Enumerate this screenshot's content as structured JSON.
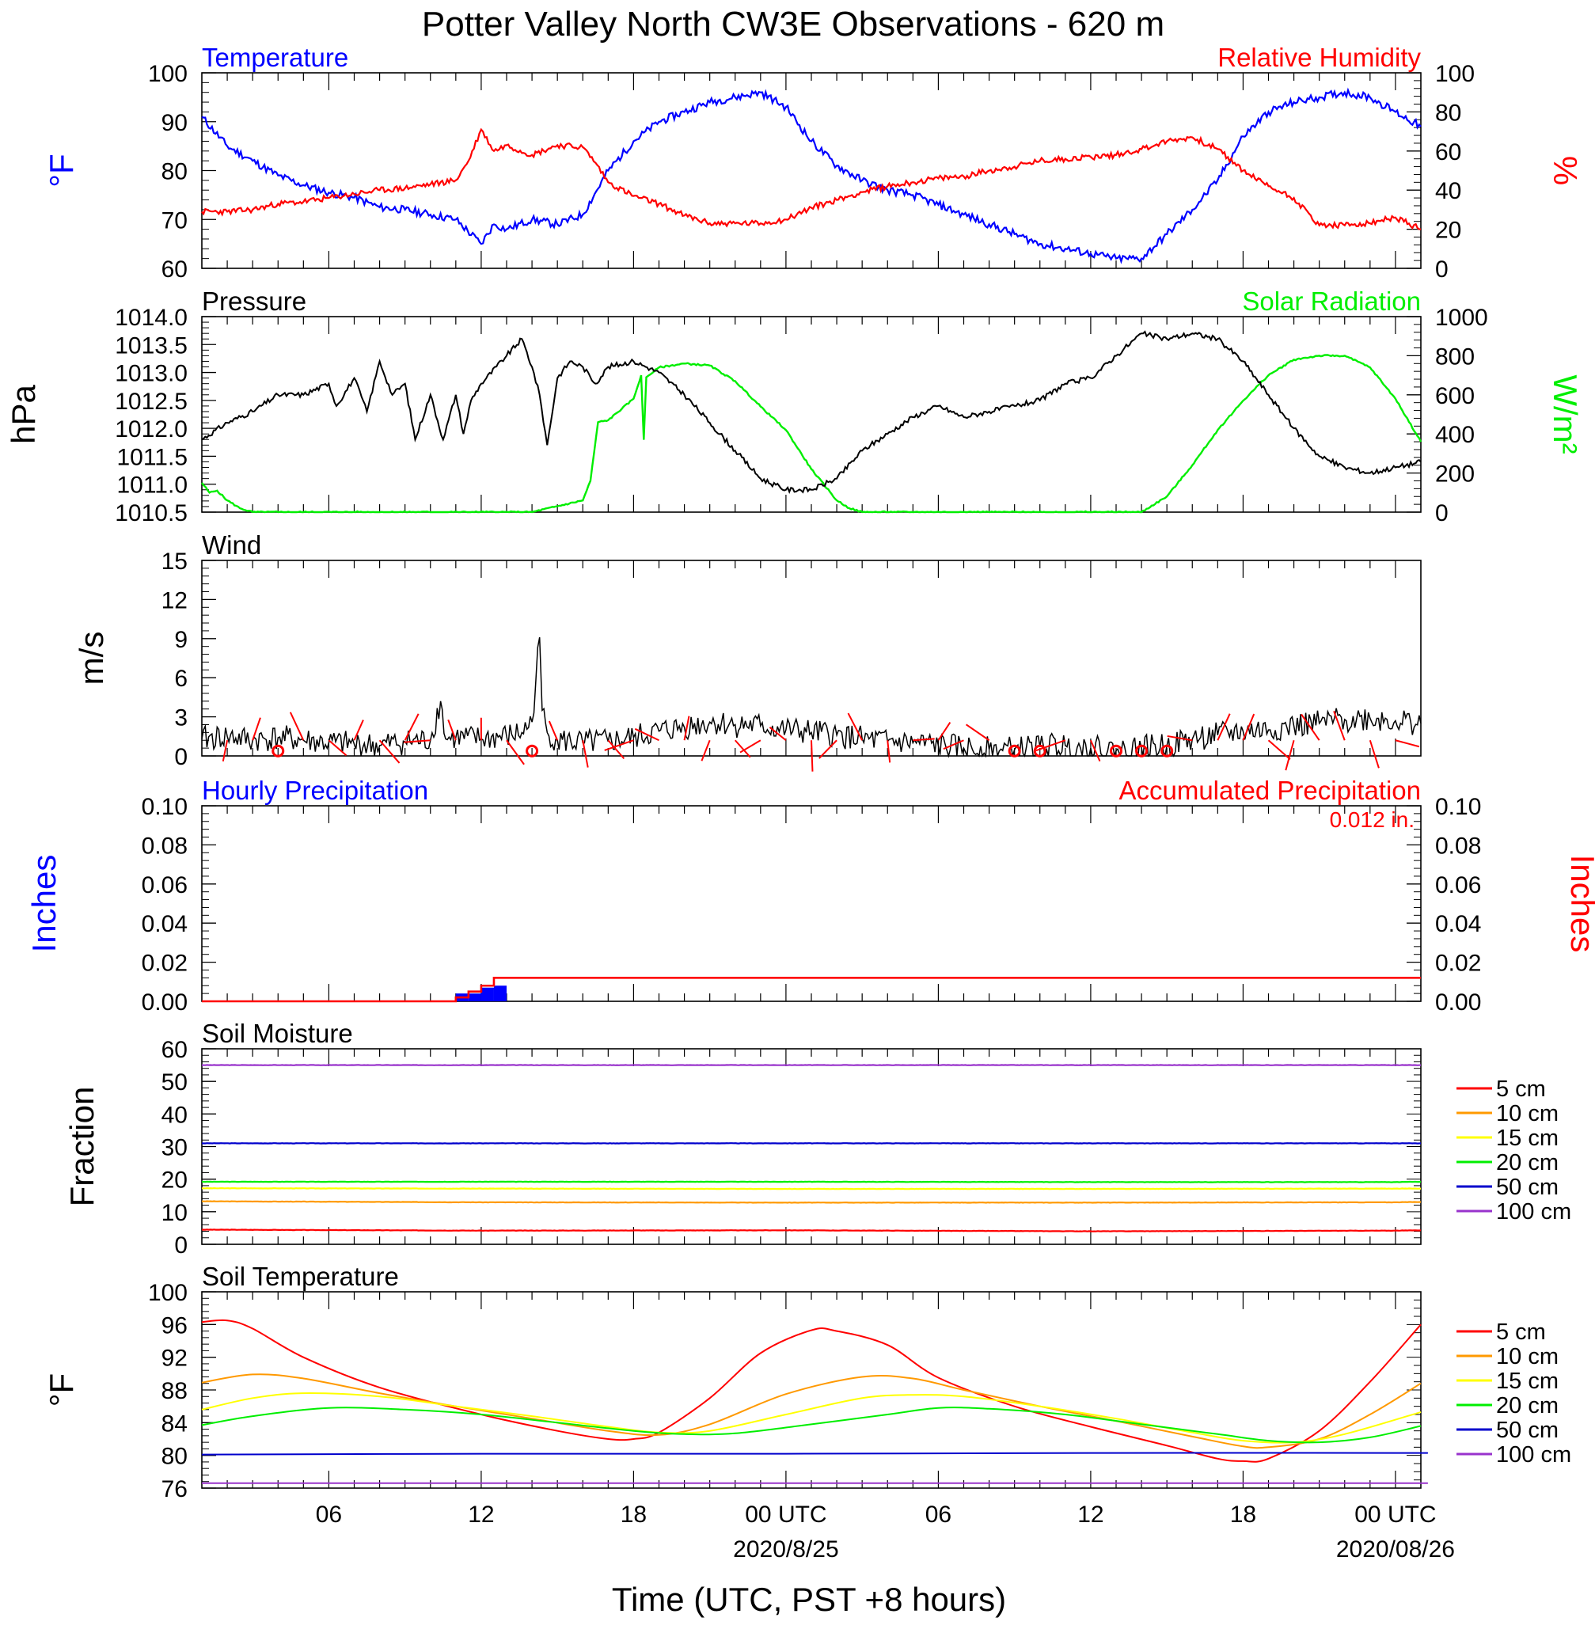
{
  "title": "Potter Valley North CW3E Observations - 620 m",
  "colors": {
    "temperature": "#0000ff",
    "humidity": "#ff0000",
    "pressure": "#000000",
    "solar": "#00ee00",
    "wind": "#000000",
    "barb": "#ff0000",
    "hourly_precip": "#0000ff",
    "accum_precip": "#ff0000",
    "levels": [
      "#ff0000",
      "#ff9900",
      "#ffff00",
      "#00ee00",
      "#0000cc",
      "#9933cc"
    ]
  },
  "time_axis": {
    "xlabel": "Time (UTC, PST +8 hours)",
    "xlim_hours": [
      1,
      49
    ],
    "tick_hours": [
      6,
      12,
      18,
      24,
      30,
      36,
      42,
      48
    ],
    "tick_labels": [
      "06",
      "12",
      "18",
      "00 UTC",
      "06",
      "12",
      "18",
      "00 UTC"
    ],
    "date_labels": [
      {
        "hour": 24,
        "text": "2020/8/25"
      },
      {
        "hour": 48,
        "text": "2020/08/26"
      }
    ]
  },
  "chart_data": [
    {
      "type": "line",
      "panel": "temperature-humidity",
      "left_title": "Temperature",
      "right_title": "Relative Humidity",
      "ylabel": "°F",
      "ylabel_right": "%",
      "ylim": [
        60,
        100
      ],
      "yticks": [
        60,
        70,
        80,
        90,
        100
      ],
      "ylim_right": [
        0,
        100
      ],
      "yticks_right": [
        0,
        20,
        40,
        60,
        80,
        100
      ],
      "series": [
        {
          "color_key": "temperature",
          "axis": "left",
          "x": [
            1,
            2,
            3,
            4,
            5,
            6,
            7,
            8,
            9,
            10,
            11,
            12,
            12.5,
            13,
            14,
            15,
            16,
            17,
            18,
            19,
            20,
            21,
            22,
            23,
            24,
            25,
            26,
            27,
            28,
            29,
            30,
            31,
            32,
            33,
            34,
            35,
            36,
            37,
            38,
            39,
            40,
            41,
            42,
            43,
            44,
            45,
            46,
            47,
            48,
            49
          ],
          "y": [
            91,
            85,
            82,
            79,
            77,
            75.5,
            74.5,
            72.5,
            72,
            71,
            70,
            65,
            69,
            68,
            70,
            69,
            71,
            80,
            86,
            90,
            92,
            94,
            95,
            96,
            93,
            86,
            81,
            78,
            76,
            75,
            73,
            71,
            69,
            67,
            65,
            64,
            63,
            62,
            62,
            67,
            72,
            78,
            87,
            92,
            94,
            95,
            96,
            95,
            92,
            89
          ]
        },
        {
          "color_key": "humidity",
          "axis": "right",
          "x": [
            1,
            2,
            3,
            4,
            5,
            6,
            7,
            8,
            9,
            10,
            11,
            11.5,
            12,
            12.5,
            13,
            14,
            15,
            16,
            16.5,
            17,
            18,
            19,
            20,
            21,
            22,
            23,
            24,
            25,
            26,
            27,
            28,
            29,
            30,
            31,
            32,
            33,
            34,
            35,
            36,
            37,
            38,
            39,
            40,
            41,
            42,
            43,
            44,
            45,
            46,
            47,
            48,
            49
          ],
          "y": [
            29,
            29,
            30,
            33,
            34,
            36,
            38,
            40,
            41,
            43,
            45,
            55,
            71,
            60,
            63,
            58,
            63,
            62,
            54,
            44,
            37,
            33,
            27,
            23,
            23,
            23,
            25,
            31,
            35,
            39,
            42,
            44,
            46,
            47,
            50,
            52,
            55,
            56,
            57,
            58,
            61,
            65,
            67,
            61,
            50,
            42,
            36,
            22,
            22,
            23,
            26,
            20
          ]
        }
      ]
    },
    {
      "type": "line",
      "panel": "pressure-solar",
      "left_title": "Pressure",
      "right_title": "Solar Radiation",
      "ylabel": "hPa",
      "ylabel_right": "W/m²",
      "ylim": [
        1010.5,
        1014.0
      ],
      "yticks": [
        1010.5,
        1011.0,
        1011.5,
        1012.0,
        1012.5,
        1013.0,
        1013.5,
        1014.0
      ],
      "ylim_right": [
        0,
        1000
      ],
      "yticks_right": [
        0,
        200,
        400,
        600,
        800,
        1000
      ],
      "series": [
        {
          "color_key": "pressure",
          "axis": "left",
          "x": [
            1,
            2,
            3,
            4,
            5,
            6,
            6.3,
            7,
            7.5,
            8,
            8.5,
            9,
            9.4,
            10,
            10.5,
            11,
            11.3,
            11.6,
            12,
            13,
            13.6,
            14,
            14.3,
            14.6,
            15,
            15.5,
            16,
            16.5,
            17,
            18,
            19,
            20,
            21,
            22,
            23,
            24,
            25,
            26,
            27,
            28,
            29,
            30,
            31,
            32,
            33,
            34,
            35,
            36,
            37,
            38,
            39,
            40,
            41,
            42,
            43,
            44,
            45,
            46,
            47,
            48,
            49
          ],
          "y": [
            1011.8,
            1012.1,
            1012.3,
            1012.6,
            1012.6,
            1012.8,
            1012.4,
            1012.9,
            1012.3,
            1013.2,
            1012.6,
            1012.8,
            1011.8,
            1012.6,
            1011.8,
            1012.6,
            1011.9,
            1012.5,
            1012.8,
            1013.3,
            1013.6,
            1013.1,
            1012.6,
            1011.7,
            1012.9,
            1013.2,
            1013.1,
            1012.8,
            1013.1,
            1013.2,
            1013.0,
            1012.6,
            1012.1,
            1011.6,
            1011.1,
            1010.9,
            1010.9,
            1011.1,
            1011.6,
            1011.9,
            1012.2,
            1012.4,
            1012.2,
            1012.3,
            1012.4,
            1012.5,
            1012.8,
            1012.9,
            1013.3,
            1013.7,
            1013.6,
            1013.7,
            1013.6,
            1013.2,
            1012.6,
            1012.0,
            1011.5,
            1011.3,
            1011.2,
            1011.3,
            1011.4
          ]
        },
        {
          "color_key": "solar",
          "axis": "right",
          "x": [
            1,
            1.3,
            1.6,
            2,
            2.5,
            3,
            4,
            5,
            10,
            14,
            15,
            16,
            16.3,
            16.6,
            17,
            18,
            18.3,
            18.4,
            18.5,
            19,
            20,
            21,
            22,
            23,
            24,
            25,
            26,
            26.5,
            27,
            28,
            36,
            38,
            39,
            40,
            41,
            42,
            43,
            44,
            45,
            46,
            47,
            48,
            49
          ],
          "y": [
            150,
            100,
            110,
            60,
            20,
            0,
            0,
            0,
            0,
            0,
            30,
            60,
            160,
            460,
            470,
            580,
            700,
            370,
            690,
            740,
            760,
            750,
            670,
            540,
            420,
            220,
            60,
            20,
            0,
            0,
            0,
            0,
            80,
            240,
            420,
            570,
            700,
            780,
            800,
            800,
            740,
            580,
            360
          ]
        }
      ]
    },
    {
      "type": "line",
      "panel": "wind",
      "left_title": "Wind",
      "ylabel": "m/s",
      "ylim": [
        0,
        15
      ],
      "yticks": [
        0,
        3,
        6,
        9,
        12,
        15
      ],
      "series": [
        {
          "color_key": "wind",
          "axis": "left",
          "x": [
            1,
            2,
            3,
            4,
            5,
            6,
            7,
            8,
            9,
            10,
            10.4,
            10.6,
            11,
            12,
            13,
            13.6,
            14,
            14.3,
            14.4,
            14.6,
            15,
            16,
            17,
            18,
            19,
            20,
            21,
            22,
            23,
            24,
            25,
            26,
            27,
            28,
            29,
            30,
            31,
            32,
            33,
            34,
            35,
            36,
            37,
            38,
            39,
            40,
            41,
            42,
            43,
            44,
            45,
            46,
            47,
            48,
            49
          ],
          "y": [
            1.3,
            1.5,
            1.2,
            1.4,
            1.2,
            1.0,
            0.9,
            0.8,
            1.1,
            1.2,
            4.2,
            1.3,
            1.4,
            1.3,
            1.5,
            1.8,
            2.6,
            9.1,
            3.5,
            1.8,
            1.2,
            1.0,
            1.1,
            1.4,
            1.9,
            2.2,
            2.6,
            2.4,
            2.3,
            2.0,
            1.8,
            1.6,
            1.3,
            1.1,
            1.0,
            0.8,
            0.6,
            0.5,
            0.5,
            0.7,
            0.8,
            0.6,
            0.4,
            0.6,
            0.8,
            1.3,
            1.6,
            1.9,
            2.0,
            2.3,
            2.5,
            2.8,
            2.9,
            2.7,
            2.5
          ]
        }
      ],
      "calm_hours": [
        4,
        14,
        33,
        34,
        37,
        38,
        39
      ]
    },
    {
      "type": "bar",
      "panel": "precipitation",
      "left_title": "Hourly Precipitation",
      "right_title": "Accumulated Precipitation",
      "accum_label": "0.012 in.",
      "ylabel": "Inches",
      "ylabel_right": "Inches",
      "ylim": [
        0,
        0.1
      ],
      "yticks": [
        "0.00",
        "0.02",
        "0.04",
        "0.06",
        "0.08",
        "0.10"
      ],
      "ylim_right": [
        0,
        0.1
      ],
      "yticks_right": [
        "0.00",
        "0.02",
        "0.04",
        "0.06",
        "0.08",
        "0.10"
      ],
      "hourly": {
        "x_start": [
          11,
          11.5,
          12,
          12.5
        ],
        "x_end": [
          11.5,
          12,
          12.5,
          13
        ],
        "values": [
          0.004,
          0.004,
          0.007,
          0.008
        ]
      },
      "accumulated": {
        "x": [
          1,
          11,
          11.5,
          12,
          12.5,
          49
        ],
        "y": [
          0,
          0.002,
          0.005,
          0.008,
          0.012,
          0.012
        ]
      }
    },
    {
      "type": "line",
      "panel": "soil-moisture",
      "left_title": "Soil Moisture",
      "ylabel": "Fraction",
      "ylim": [
        0,
        60
      ],
      "yticks": [
        0,
        10,
        20,
        30,
        40,
        50,
        60
      ],
      "series": [
        {
          "name": "5 cm",
          "color_index": 0,
          "x": [
            1,
            12,
            24,
            36,
            48,
            49
          ],
          "y": [
            4.5,
            4.2,
            4.3,
            4.0,
            4.2,
            4.3
          ]
        },
        {
          "name": "10 cm",
          "color_index": 1,
          "x": [
            1,
            12,
            24,
            36,
            48,
            49
          ],
          "y": [
            13.2,
            12.9,
            12.8,
            12.8,
            12.9,
            13.0
          ]
        },
        {
          "name": "15 cm",
          "color_index": 2,
          "x": [
            1,
            12,
            24,
            36,
            48,
            49
          ],
          "y": [
            17.2,
            17.1,
            17.0,
            17.0,
            17.1,
            17.1
          ]
        },
        {
          "name": "20 cm",
          "color_index": 3,
          "x": [
            1,
            12,
            24,
            36,
            48,
            49
          ],
          "y": [
            19.2,
            19.2,
            19.2,
            19.1,
            19.1,
            19.2
          ]
        },
        {
          "name": "50 cm",
          "color_index": 4,
          "x": [
            1,
            12,
            24,
            36,
            48,
            49
          ],
          "y": [
            31.0,
            31.0,
            31.0,
            31.0,
            31.0,
            31.0
          ]
        },
        {
          "name": "100 cm",
          "color_index": 5,
          "x": [
            1,
            12,
            24,
            36,
            48,
            49
          ],
          "y": [
            55.0,
            55.0,
            55.0,
            55.0,
            55.0,
            55.0
          ]
        }
      ]
    },
    {
      "type": "line",
      "panel": "soil-temperature",
      "left_title": "Soil Temperature",
      "ylabel": "°F",
      "ylim": [
        76,
        100
      ],
      "yticks": [
        76,
        80,
        84,
        88,
        92,
        96,
        100
      ],
      "series": [
        {
          "name": "5 cm",
          "color_index": 0,
          "x": [
            1,
            2,
            3,
            5,
            8,
            12,
            15,
            17,
            18,
            19,
            21,
            23,
            25,
            26,
            28,
            30,
            33,
            36,
            39,
            41,
            42,
            43,
            45,
            47,
            49
          ],
          "y": [
            96.3,
            96.5,
            95.5,
            92.0,
            88.3,
            85.0,
            83.0,
            82.0,
            82.0,
            82.8,
            87.0,
            92.5,
            95.3,
            95.2,
            93.5,
            89.5,
            86.0,
            83.5,
            81.2,
            79.6,
            79.3,
            79.6,
            83.0,
            89.0,
            96.0
          ]
        },
        {
          "name": "10 cm",
          "color_index": 1,
          "x": [
            1,
            3,
            5,
            8,
            11,
            14,
            17,
            19,
            21,
            24,
            27,
            29,
            31,
            34,
            37,
            40,
            42,
            43,
            45,
            47,
            49
          ],
          "y": [
            88.9,
            89.9,
            89.4,
            87.6,
            86.0,
            84.5,
            83.0,
            82.5,
            83.8,
            87.5,
            89.6,
            89.4,
            88.0,
            86.0,
            84.2,
            82.3,
            81.1,
            81.0,
            82.0,
            85.0,
            88.8
          ]
        },
        {
          "name": "15 cm",
          "color_index": 2,
          "x": [
            1,
            3,
            5,
            8,
            11,
            14,
            17,
            19,
            21,
            24,
            27,
            29,
            31,
            34,
            37,
            40,
            42,
            44,
            46,
            49
          ],
          "y": [
            85.6,
            87.0,
            87.6,
            87.2,
            86.0,
            84.8,
            83.5,
            82.8,
            83.0,
            85.0,
            87.0,
            87.4,
            87.2,
            86.0,
            84.5,
            82.8,
            81.8,
            81.6,
            82.6,
            85.3
          ]
        },
        {
          "name": "20 cm",
          "color_index": 3,
          "x": [
            1,
            3,
            6,
            9,
            12,
            15,
            18,
            20,
            22,
            25,
            28,
            30,
            32,
            35,
            38,
            41,
            43,
            45,
            47,
            49
          ],
          "y": [
            83.7,
            84.8,
            85.8,
            85.6,
            85.0,
            84.0,
            83.0,
            82.6,
            82.7,
            83.8,
            85.0,
            85.8,
            85.7,
            85.0,
            83.8,
            82.6,
            81.8,
            81.6,
            82.2,
            83.6
          ]
        },
        {
          "name": "50 cm",
          "color_index": 4,
          "x": [
            1,
            12,
            24,
            36,
            48,
            49
          ],
          "y": [
            80.1,
            80.2,
            80.2,
            80.3,
            80.3,
            80.3
          ]
        },
        {
          "name": "100 cm",
          "color_index": 5,
          "x": [
            1,
            12,
            24,
            36,
            48,
            49
          ],
          "y": [
            76.6,
            76.6,
            76.6,
            76.6,
            76.6,
            76.6
          ]
        }
      ]
    }
  ]
}
